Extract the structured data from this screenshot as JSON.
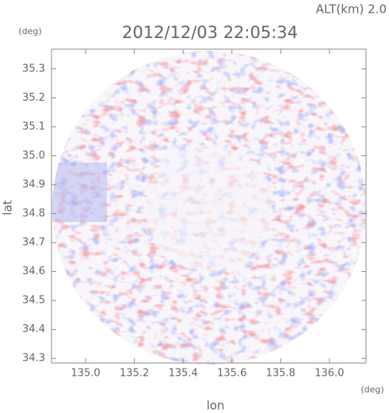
{
  "chart_data": {
    "type": "image",
    "title": "2012/12/03 22:05:34",
    "annotation": "ALT(km) 2.0",
    "xlabel": "lon",
    "ylabel": "lat",
    "x_unit": "(deg)",
    "y_unit": "(deg)",
    "xlim": [
      134.86,
      136.15
    ],
    "ylim": [
      34.284,
      35.368
    ],
    "xticks": [
      {
        "value": 135,
        "label": "135.0"
      },
      135.2,
      135.4,
      135.6,
      135.8,
      {
        "value": 136,
        "label": "136.0"
      }
    ],
    "yticks": [
      34.3,
      34.4,
      34.5,
      34.6,
      34.7,
      34.8,
      34.9,
      {
        "value": 35,
        "label": "35.0"
      },
      35.1,
      35.2,
      35.3
    ]
  }
}
